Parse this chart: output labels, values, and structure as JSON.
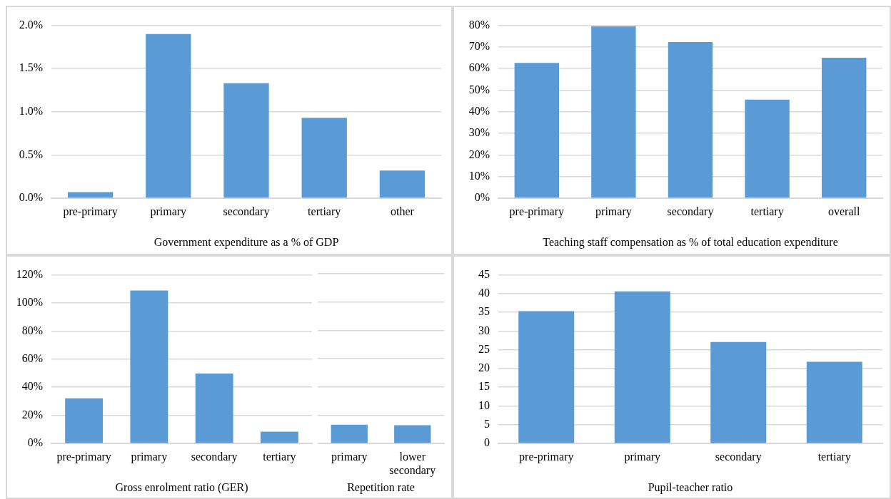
{
  "chart_data": [
    {
      "type": "bar",
      "xlabel": "Government expenditure as a % of GDP",
      "categories": [
        "pre-primary",
        "primary",
        "secondary",
        "tertiary",
        "other"
      ],
      "values": [
        0.07,
        1.9,
        1.33,
        0.93,
        0.32
      ],
      "color": "#5b9bd5",
      "ylim": [
        0,
        2
      ],
      "yticks": [
        {
          "value": 0,
          "label": "0.0%"
        },
        {
          "value": 0.5,
          "label": "0.5%"
        },
        {
          "value": 1,
          "label": "1.0%"
        },
        {
          "value": 1.5,
          "label": "1.5%"
        },
        {
          "value": 2,
          "label": "2.0%"
        }
      ],
      "grid": "y",
      "legend": false
    },
    {
      "type": "bar",
      "xlabel": "Teaching staff compensation as % of total education expenditure",
      "categories": [
        "pre-primary",
        "primary",
        "secondary",
        "tertiary",
        "overall"
      ],
      "values": [
        62.6,
        79.5,
        72.3,
        45.6,
        65
      ],
      "color": "#5b9bd5",
      "ylim": [
        0,
        80
      ],
      "yticks": [
        {
          "value": 0,
          "label": "0%"
        },
        {
          "value": 10,
          "label": "10%"
        },
        {
          "value": 20,
          "label": "20%"
        },
        {
          "value": 30,
          "label": "30%"
        },
        {
          "value": 40,
          "label": "40%"
        },
        {
          "value": 50,
          "label": "50%"
        },
        {
          "value": 60,
          "label": "60%"
        },
        {
          "value": 70,
          "label": "70%"
        },
        {
          "value": 80,
          "label": "80%"
        }
      ],
      "grid": "y",
      "legend": false
    },
    {
      "type": "bar",
      "xlabel": "Gross enrolment ratio (GER)",
      "categories": [
        "pre-primary",
        "primary",
        "secondary",
        "tertiary"
      ],
      "values": [
        32.1,
        108.9,
        49.7,
        8.4
      ],
      "color": "#5b9bd5",
      "ylim": [
        0,
        120
      ],
      "yticks": [
        {
          "value": 0,
          "label": "0%"
        },
        {
          "value": 20,
          "label": "20%"
        },
        {
          "value": 40,
          "label": "40%"
        },
        {
          "value": 60,
          "label": "60%"
        },
        {
          "value": 80,
          "label": "80%"
        },
        {
          "value": 100,
          "label": "100%"
        },
        {
          "value": 120,
          "label": "120%"
        }
      ],
      "grid": "y",
      "legend": false
    },
    {
      "type": "bar",
      "xlabel": "Repetition rate",
      "categories": [
        "primary",
        "lower secondary"
      ],
      "values": [
        13.2,
        12.8
      ],
      "color": "#5b9bd5",
      "ylim": [
        0,
        120
      ],
      "yticks": [
        0,
        20,
        40,
        60,
        80,
        100,
        120
      ],
      "grid": "y",
      "legend": false,
      "tick_labels": "x"
    },
    {
      "type": "bar",
      "xlabel": "Pupil-teacher ratio",
      "categories": [
        "pre-primary",
        "primary",
        "secondary",
        "tertiary"
      ],
      "values": [
        35.3,
        40.6,
        27.1,
        21.8
      ],
      "color": "#5b9bd5",
      "ylim": [
        0,
        45
      ],
      "yticks": [
        0,
        5,
        10,
        15,
        20,
        25,
        30,
        35,
        40,
        45
      ],
      "grid": "y",
      "legend": false
    }
  ]
}
